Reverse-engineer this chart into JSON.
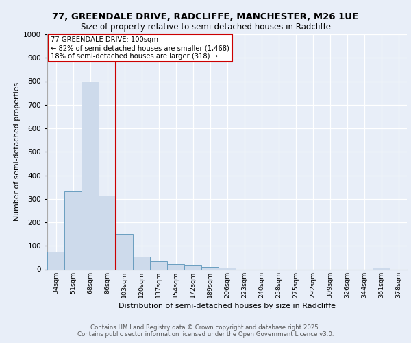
{
  "title1": "77, GREENDALE DRIVE, RADCLIFFE, MANCHESTER, M26 1UE",
  "title2": "Size of property relative to semi-detached houses in Radcliffe",
  "xlabel": "Distribution of semi-detached houses by size in Radcliffe",
  "ylabel": "Number of semi-detached properties",
  "categories": [
    "34sqm",
    "51sqm",
    "68sqm",
    "86sqm",
    "103sqm",
    "120sqm",
    "137sqm",
    "154sqm",
    "172sqm",
    "189sqm",
    "206sqm",
    "223sqm",
    "240sqm",
    "258sqm",
    "275sqm",
    "292sqm",
    "309sqm",
    "326sqm",
    "344sqm",
    "361sqm",
    "378sqm"
  ],
  "values": [
    75,
    330,
    800,
    315,
    150,
    55,
    35,
    22,
    15,
    10,
    8,
    0,
    0,
    0,
    0,
    0,
    0,
    0,
    0,
    8,
    0
  ],
  "bar_color": "#cddaeb",
  "bar_edge_color": "#6a9ec0",
  "vline_x": 3.5,
  "vline_color": "#cc0000",
  "vline_label": "77 GREENDALE DRIVE: 100sqm",
  "annotation_smaller": "← 82% of semi-detached houses are smaller (1,468)",
  "annotation_larger": "18% of semi-detached houses are larger (318) →",
  "annotation_box_color": "#ffffff",
  "annotation_box_edge": "#cc0000",
  "ylim": [
    0,
    1000
  ],
  "yticks": [
    0,
    100,
    200,
    300,
    400,
    500,
    600,
    700,
    800,
    900,
    1000
  ],
  "footer1": "Contains HM Land Registry data © Crown copyright and database right 2025.",
  "footer2": "Contains public sector information licensed under the Open Government Licence v3.0.",
  "bg_color": "#e8eef8",
  "plot_bg_color": "#e8eef8"
}
